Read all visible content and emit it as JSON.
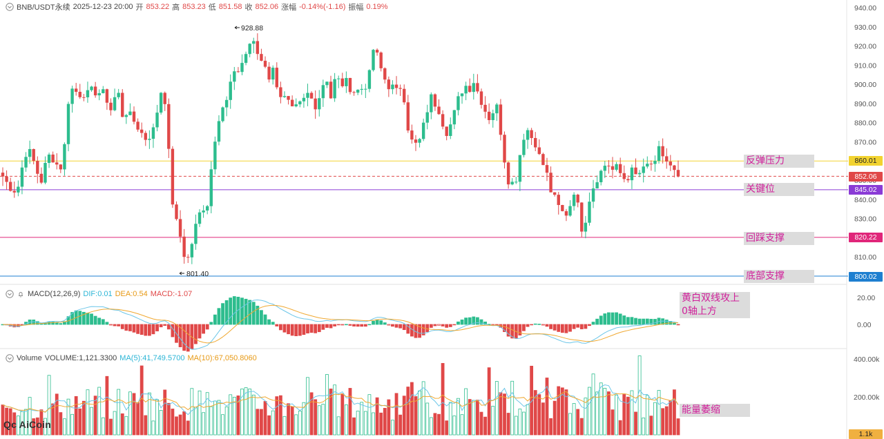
{
  "header": {
    "symbol": "BNB/USDT永续",
    "datetime": "2025-12-23 20:00",
    "open_label": "开",
    "open": "853.22",
    "high_label": "高",
    "high": "853.23",
    "low_label": "低",
    "low": "851.58",
    "close_label": "收",
    "close": "852.06",
    "change_label": "涨幅",
    "change": "-0.14%(-1.16)",
    "amplitude_label": "振幅",
    "amplitude": "0.19%"
  },
  "macd": {
    "name": "MACD(12,26,9)",
    "dif": "DIF:0.01",
    "dea": "DEA:0.54",
    "macd": "MACD:-1.07",
    "axis_labels": [
      "20.00",
      "0.00"
    ]
  },
  "volume": {
    "name": "Volume",
    "value": "VOLUME:1,121.3300",
    "ma5": "MA(5):41,749.5700",
    "ma10": "MA(10):67,050.8060",
    "axis_labels": [
      "400.00k",
      "200.00k"
    ],
    "last_tag": "1.1k"
  },
  "price_axis": [
    "940.00",
    "930.00",
    "920.00",
    "910.00",
    "900.00",
    "890.00",
    "880.00",
    "870.00",
    "860.00",
    "850.00",
    "840.00",
    "830.00",
    "820.00",
    "810.00",
    "800.00"
  ],
  "price_tags": {
    "resistance": "860.01",
    "current": "852.06",
    "key": "845.02",
    "support": "820.22",
    "bottom": "800.02"
  },
  "markers": {
    "high": "928.88",
    "low": "801.40"
  },
  "annotations": {
    "resistance": "反弹压力",
    "key": "关键位",
    "support": "回踩支撑",
    "bottom": "底部支撑",
    "macd_note_1": "黄白双线攻上",
    "macd_note_2": "0轴上方",
    "volume_note": "能量萎缩"
  },
  "logo": "AiCoin",
  "colors": {
    "up": "#2dbd8e",
    "down": "#e04848",
    "resistance": "#f2d330",
    "key": "#8a3bd6",
    "support": "#e0267a",
    "bottom": "#1e7fd0",
    "macd_dif": "#6cc6e8",
    "macd_dea": "#f0a830"
  },
  "chart_data": {
    "type": "candlestick",
    "price_range": [
      800,
      940
    ],
    "anchor_prices": [
      852,
      848,
      846,
      844,
      856,
      866,
      863,
      856,
      849,
      858,
      864,
      860,
      855,
      868,
      898,
      897,
      895,
      896,
      894,
      897,
      896,
      895,
      892,
      885,
      900,
      884,
      886,
      882,
      880,
      875,
      872,
      874,
      877,
      897,
      895,
      860,
      830,
      825,
      812,
      809,
      820,
      830,
      836,
      838,
      860,
      880,
      888,
      890,
      902,
      905,
      910,
      915,
      922,
      920,
      913,
      912,
      904,
      908,
      896,
      893,
      890,
      885,
      888,
      890,
      895,
      892,
      889,
      898,
      905,
      893,
      904,
      900,
      901,
      899,
      896,
      897,
      899,
      903,
      920,
      912,
      904,
      900,
      898,
      895,
      902,
      880,
      870,
      868,
      872,
      885,
      893,
      890,
      886,
      875,
      878,
      885,
      894,
      900,
      898,
      902,
      895,
      890,
      882,
      886,
      888,
      870,
      852,
      848,
      852,
      868,
      878,
      873,
      870,
      860,
      857,
      846,
      840,
      835,
      832,
      834,
      846,
      835,
      822,
      838,
      846,
      852,
      855,
      860,
      855,
      856,
      853,
      850,
      855,
      852,
      854,
      855,
      860,
      856,
      866,
      862,
      858,
      854,
      852
    ],
    "high": 928.88,
    "low": 801.4,
    "last_close": 852.06
  }
}
